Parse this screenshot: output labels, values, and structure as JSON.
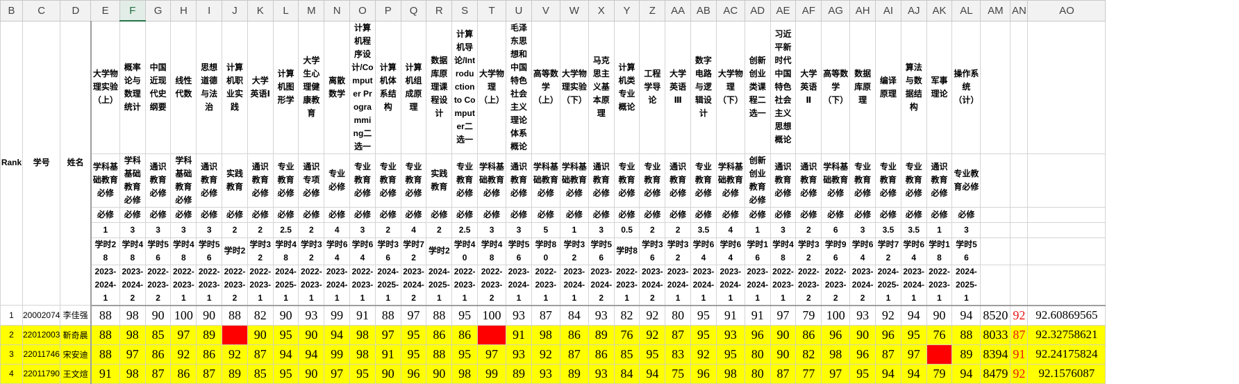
{
  "columns": [
    "B",
    "C",
    "D",
    "E",
    "F",
    "G",
    "H",
    "I",
    "J",
    "K",
    "L",
    "M",
    "N",
    "O",
    "P",
    "Q",
    "R",
    "S",
    "T",
    "U",
    "V",
    "W",
    "X",
    "Y",
    "Z",
    "AA",
    "AB",
    "AC",
    "AD",
    "AE",
    "AF",
    "AG",
    "AH",
    "AI",
    "AJ",
    "AK",
    "AL",
    "AM",
    "AN",
    "AO"
  ],
  "selected_column": "F",
  "header": {
    "rank": "Rank",
    "student_id": "学号",
    "name": "姓名"
  },
  "courses": [
    {
      "title": "大学物理实验（上）",
      "type": "学科基础教育必修",
      "req": "必修",
      "credit": "1",
      "hours": "学时28",
      "term": "2023-2024-1"
    },
    {
      "title": "概率论与数理统计",
      "type": "学科基础教育必修",
      "req": "必修",
      "credit": "3",
      "hours": "学时48",
      "term": "2023-2024-2"
    },
    {
      "title": "中国近现代史纲要",
      "type": "通识教育必修",
      "req": "必修",
      "credit": "3",
      "hours": "学时56",
      "term": "2022-2023-2"
    },
    {
      "title": "线性代数",
      "type": "学科基础教育必修",
      "req": "必修",
      "credit": "3",
      "hours": "学时48",
      "term": "2022-2023-1"
    },
    {
      "title": "思想道德与法治",
      "type": "通识教育必修",
      "req": "必修",
      "credit": "3",
      "hours": "学时56",
      "term": "2022-2023-1"
    },
    {
      "title": "计算机职业实践",
      "type": "实践教育",
      "req": "必修",
      "credit": "2",
      "hours": "学时2",
      "term": "2022-2023-2"
    },
    {
      "title": "大学英语Ⅰ",
      "type": "通识教育必修",
      "req": "必修",
      "credit": "2",
      "hours": "学时32",
      "term": "2022-2023-1"
    },
    {
      "title": "计算机图形学",
      "type": "专业教育必修",
      "req": "必修",
      "credit": "2.5",
      "hours": "学时48",
      "term": "2024-2025-1"
    },
    {
      "title": "大学生心理健康教育",
      "type": "通识专项必修",
      "req": "必修",
      "credit": "2",
      "hours": "学时32",
      "term": "2022-2023-1"
    },
    {
      "title": "离散数学",
      "type": "专业必修",
      "req": "必修",
      "credit": "4",
      "hours": "学时64",
      "term": "2023-2024-1"
    },
    {
      "title": "计算机程序设计/Computer Programming二选一",
      "type": "专业教育必修",
      "req": "必修",
      "credit": "3",
      "hours": "学时64",
      "term": "2022-2023-1"
    },
    {
      "title": "计算机体系结构",
      "type": "专业教育必修",
      "req": "必修",
      "credit": "2",
      "hours": "学时36",
      "term": "2024-2025-1"
    },
    {
      "title": "计算机组成原理",
      "type": "专业教育必修",
      "req": "必修",
      "credit": "4",
      "hours": "学时72",
      "term": "2023-2024-2"
    },
    {
      "title": "数据库原理课程设计",
      "type": "实践教育",
      "req": "必修",
      "credit": "2",
      "hours": "学时2",
      "term": "2024-2025-1"
    },
    {
      "title": "计算机导论/Introduction to Computer二选一",
      "type": "专业教育必修",
      "req": "必修",
      "credit": "2.5",
      "hours": "学时40",
      "term": "2022-2023-1"
    },
    {
      "title": "大学物理（上）",
      "type": "学科基础教育必修",
      "req": "必修",
      "credit": "3",
      "hours": "学时48",
      "term": "2022-2023-2"
    },
    {
      "title": "毛泽东思想和中国特色社会主义理论体系概论",
      "type": "通识教育必修",
      "req": "必修",
      "credit": "3",
      "hours": "学时56",
      "term": "2023-2024-1"
    },
    {
      "title": "高等数学（上）",
      "type": "学科基础教育必修",
      "req": "必修",
      "credit": "5",
      "hours": "学时80",
      "term": "2022-2023-1"
    },
    {
      "title": "大学物理实验（下）",
      "type": "学科基础教育必修",
      "req": "必修",
      "credit": "1",
      "hours": "学时32",
      "term": "2023-2024-1"
    },
    {
      "title": "马克思主义基本原理",
      "type": "通识教育必修",
      "req": "必修",
      "credit": "3",
      "hours": "学时56",
      "term": "2023-2024-2"
    },
    {
      "title": "计算机类专业概论",
      "type": "专业教育必修",
      "req": "必修",
      "credit": "0.5",
      "hours": "学时8",
      "term": "2022-2023-1"
    },
    {
      "title": "工程学导论",
      "type": "专业教育必修",
      "req": "必修",
      "credit": "2",
      "hours": "学时36",
      "term": "2023-2024-2"
    },
    {
      "title": "大学英语Ⅲ",
      "type": "通识教育必修",
      "req": "必修",
      "credit": "2",
      "hours": "学时32",
      "term": "2023-2024-1"
    },
    {
      "title": "数字电路与逻辑设计",
      "type": "专业教育必修",
      "req": "必修",
      "credit": "3.5",
      "hours": "学时64",
      "term": "2023-2024-1"
    },
    {
      "title": "大学物理（下）",
      "type": "学科基础教育必修",
      "req": "必修",
      "credit": "4",
      "hours": "学时64",
      "term": "2023-2024-1"
    },
    {
      "title": "创新创业类课程二选一",
      "type": "创新创业教育必修",
      "req": "必修",
      "credit": "1",
      "hours": "学时16",
      "term": "2023-2024-1"
    },
    {
      "title": "习近平新时代中国特色社会主义思想概论",
      "type": "通识教育必修",
      "req": "必修",
      "credit": "3",
      "hours": "学时48",
      "term": "2022-2023-1"
    },
    {
      "title": "大学英语Ⅱ",
      "type": "通识教育必修",
      "req": "必修",
      "credit": "2",
      "hours": "学时32",
      "term": "2022-2023-2"
    },
    {
      "title": "高等数学（下）",
      "type": "学科基础教育必修",
      "req": "必修",
      "credit": "6",
      "hours": "学时96",
      "term": "2022-2023-2"
    },
    {
      "title": "数据库原理",
      "type": "专业教育必修",
      "req": "必修",
      "credit": "3",
      "hours": "学时64",
      "term": "2023-2024-2"
    },
    {
      "title": "编译原理",
      "type": "专业教育必修",
      "req": "必修",
      "credit": "3.5",
      "hours": "学时72",
      "term": "2024-2025-1"
    },
    {
      "title": "算法与数据结构",
      "type": "专业教育必修",
      "req": "必修",
      "credit": "3.5",
      "hours": "学时64",
      "term": "2023-2024-1"
    },
    {
      "title": "军事理论",
      "type": "通识教育必修",
      "req": "必修",
      "credit": "1",
      "hours": "学时18",
      "term": "2022-2023-1"
    },
    {
      "title": "操作系统（计）",
      "type": "专业教育必修",
      "req": "必修",
      "credit": "3",
      "hours": "学时56",
      "term": "2024-2025-1"
    }
  ],
  "rows": [
    {
      "rank": "1",
      "id": "20002074",
      "name": "李佳强",
      "scores": [
        "88",
        "98",
        "90",
        "100",
        "90",
        "88",
        "82",
        "90",
        "93",
        "99",
        "91",
        "88",
        "97",
        "88",
        "95",
        "100",
        "93",
        "87",
        "84",
        "93",
        "82",
        "92",
        "80",
        "95",
        "91",
        "91",
        "97",
        "79",
        "100",
        "93",
        "92",
        "94",
        "90",
        "94"
      ],
      "total": "8520",
      "rk": "92",
      "pct": "92.60869565",
      "highlight": false,
      "red": []
    },
    {
      "rank": "2",
      "id": "22012003",
      "name": "靳奇晨",
      "scores": [
        "88",
        "98",
        "85",
        "97",
        "89",
        "",
        "90",
        "95",
        "90",
        "94",
        "98",
        "97",
        "95",
        "86",
        "86",
        "",
        "91",
        "98",
        "86",
        "89",
        "76",
        "92",
        "87",
        "95",
        "93",
        "96",
        "90",
        "86",
        "96",
        "90",
        "96",
        "95",
        "76",
        "88"
      ],
      "total": "8033",
      "rk": "87",
      "pct": "92.32758621",
      "highlight": true,
      "red": [
        5,
        15
      ]
    },
    {
      "rank": "3",
      "id": "22011746",
      "name": "宋安迪",
      "scores": [
        "88",
        "97",
        "86",
        "92",
        "86",
        "92",
        "87",
        "94",
        "94",
        "99",
        "98",
        "91",
        "95",
        "88",
        "95",
        "97",
        "93",
        "92",
        "87",
        "86",
        "85",
        "95",
        "83",
        "92",
        "95",
        "80",
        "90",
        "82",
        "98",
        "96",
        "87",
        "97",
        "",
        "89"
      ],
      "total": "8394",
      "rk": "91",
      "pct": "92.24175824",
      "highlight": true,
      "red": [
        32
      ]
    },
    {
      "rank": "4",
      "id": "22011790",
      "name": "王文煊",
      "scores": [
        "91",
        "98",
        "87",
        "86",
        "87",
        "89",
        "85",
        "95",
        "90",
        "97",
        "95",
        "90",
        "96",
        "90",
        "98",
        "99",
        "89",
        "93",
        "89",
        "93",
        "84",
        "94",
        "75",
        "96",
        "98",
        "80",
        "87",
        "77",
        "97",
        "95",
        "94",
        "94",
        "79",
        "94"
      ],
      "total": "8479",
      "rk": "92",
      "pct": "92.1576087",
      "highlight": true,
      "red": []
    }
  ]
}
